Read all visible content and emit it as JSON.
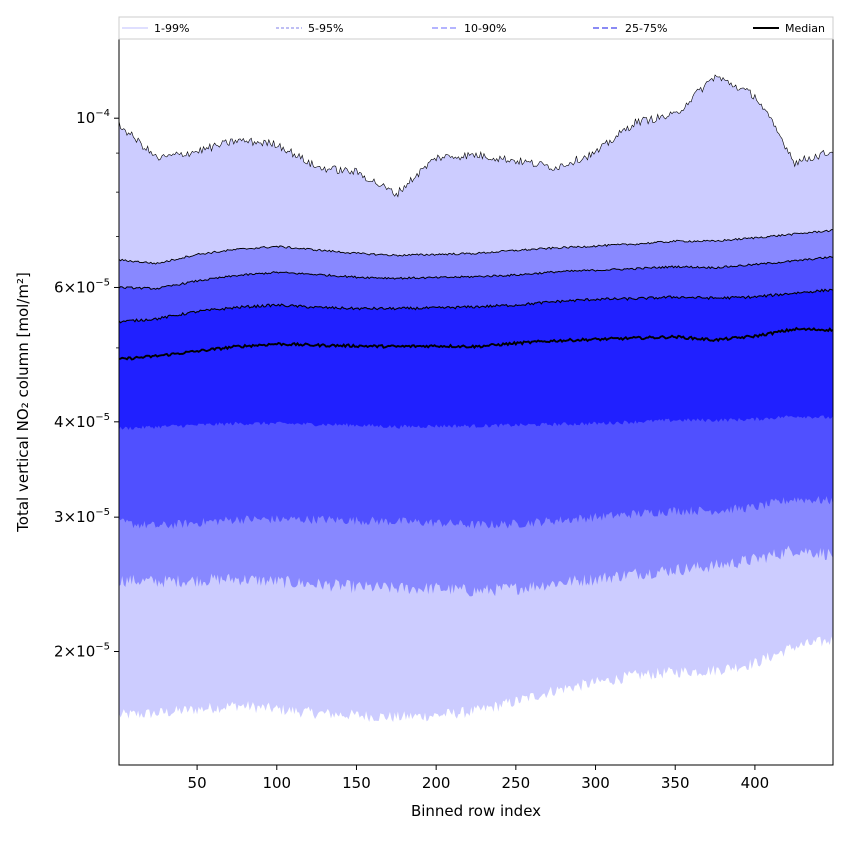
{
  "chart_data": {
    "type": "area",
    "xlabel": "Binned row index",
    "ylabel": "Total vertical NO₂ column [mol/m²]",
    "yscale": "log",
    "xlim": [
      1,
      449
    ],
    "ylim": [
      1.42e-05,
      0.000127
    ],
    "x_ticks": [
      50,
      100,
      150,
      200,
      250,
      300,
      350,
      400
    ],
    "x_tick_labels": [
      "50",
      "100",
      "150",
      "200",
      "250",
      "300",
      "350",
      "400"
    ],
    "y_ticks": [
      {
        "value": 0.0001,
        "mant": "",
        "exp": "−4"
      },
      {
        "value": 6e-05,
        "mant": "6",
        "exp": "−5"
      },
      {
        "value": 4e-05,
        "mant": "4",
        "exp": "−5"
      },
      {
        "value": 3e-05,
        "mant": "3",
        "exp": "−5"
      },
      {
        "value": 2e-05,
        "mant": "2",
        "exp": "−5"
      }
    ],
    "legend": [
      {
        "label": "1-99%",
        "color": "#ccccff",
        "dash": "none"
      },
      {
        "label": "5-95%",
        "color": "#9999ee",
        "dash": "3,2"
      },
      {
        "label": "10-90%",
        "color": "#8888ff",
        "dash": "6,3"
      },
      {
        "label": "25-75%",
        "color": "#4444ee",
        "dash": "6,3"
      },
      {
        "label": "Median",
        "color": "#000000",
        "dash": "none"
      }
    ],
    "colors": {
      "band_1_99": "#ccccff",
      "band_5_95": "#8888ff",
      "band_10_90": "#5050ff",
      "band_25_75": "#2020ff"
    },
    "key_x": [
      1,
      25,
      50,
      75,
      100,
      125,
      150,
      175,
      200,
      225,
      250,
      275,
      300,
      325,
      350,
      375,
      400,
      425,
      449
    ],
    "series": [
      {
        "name": "p1",
        "values": [
          1.65e-05,
          1.66e-05,
          1.68e-05,
          1.7e-05,
          1.68e-05,
          1.66e-05,
          1.65e-05,
          1.64e-05,
          1.65e-05,
          1.67e-05,
          1.72e-05,
          1.78e-05,
          1.82e-05,
          1.86e-05,
          1.88e-05,
          1.89e-05,
          1.93e-05,
          2.03e-05,
          2.07e-05
        ]
      },
      {
        "name": "p5",
        "values": [
          2.48e-05,
          2.47e-05,
          2.48e-05,
          2.49e-05,
          2.47e-05,
          2.45e-05,
          2.43e-05,
          2.42e-05,
          2.42e-05,
          2.4e-05,
          2.42e-05,
          2.46e-05,
          2.49e-05,
          2.53e-05,
          2.56e-05,
          2.59e-05,
          2.64e-05,
          2.72e-05,
          2.68e-05
        ]
      },
      {
        "name": "p10",
        "values": [
          2.95e-05,
          2.92e-05,
          2.95e-05,
          2.98e-05,
          2.98e-05,
          2.98e-05,
          2.97e-05,
          2.96e-05,
          2.95e-05,
          2.93e-05,
          2.94e-05,
          2.97e-05,
          3e-05,
          3.03e-05,
          3.06e-05,
          3.06e-05,
          3.09e-05,
          3.17e-05,
          3.15e-05
        ]
      },
      {
        "name": "p25",
        "values": [
          3.92e-05,
          3.94e-05,
          3.96e-05,
          3.98e-05,
          3.98e-05,
          3.97e-05,
          3.96e-05,
          3.94e-05,
          3.95e-05,
          3.95e-05,
          3.96e-05,
          3.97e-05,
          3.98e-05,
          4e-05,
          4.02e-05,
          4.02e-05,
          4.03e-05,
          4.07e-05,
          4.05e-05
        ]
      },
      {
        "name": "median",
        "values": [
          4.83e-05,
          4.88e-05,
          4.95e-05,
          5.02e-05,
          5.06e-05,
          5.04e-05,
          5.03e-05,
          5.02e-05,
          5.03e-05,
          5.02e-05,
          5.07e-05,
          5.11e-05,
          5.13e-05,
          5.15e-05,
          5.17e-05,
          5.12e-05,
          5.18e-05,
          5.29e-05,
          5.28e-05
        ]
      },
      {
        "name": "p75",
        "values": [
          5.41e-05,
          5.46e-05,
          5.58e-05,
          5.65e-05,
          5.69e-05,
          5.65e-05,
          5.63e-05,
          5.63e-05,
          5.64e-05,
          5.66e-05,
          5.69e-05,
          5.75e-05,
          5.79e-05,
          5.8e-05,
          5.83e-05,
          5.81e-05,
          5.83e-05,
          5.9e-05,
          5.96e-05
        ]
      },
      {
        "name": "p90",
        "values": [
          6e-05,
          5.98e-05,
          6.12e-05,
          6.22e-05,
          6.28e-05,
          6.24e-05,
          6.19e-05,
          6.17e-05,
          6.18e-05,
          6.2e-05,
          6.23e-05,
          6.29e-05,
          6.32e-05,
          6.35e-05,
          6.39e-05,
          6.37e-05,
          6.43e-05,
          6.5e-05,
          6.58e-05
        ]
      },
      {
        "name": "p95",
        "values": [
          6.52e-05,
          6.45e-05,
          6.63e-05,
          6.73e-05,
          6.79e-05,
          6.72e-05,
          6.65e-05,
          6.61e-05,
          6.63e-05,
          6.65e-05,
          6.71e-05,
          6.76e-05,
          6.8e-05,
          6.84e-05,
          6.9e-05,
          6.9e-05,
          6.97e-05,
          7.05e-05,
          7.13e-05
        ]
      },
      {
        "name": "p99",
        "values": [
          9.8e-05,
          8.85e-05,
          9.05e-05,
          9.35e-05,
          9.25e-05,
          8.62e-05,
          8.5e-05,
          7.95e-05,
          8.88e-05,
          8.95e-05,
          8.8e-05,
          8.62e-05,
          9e-05,
          9.88e-05,
          0.000101,
          0.0001135,
          0.000107,
          8.75e-05,
          9.05e-05
        ]
      }
    ]
  }
}
